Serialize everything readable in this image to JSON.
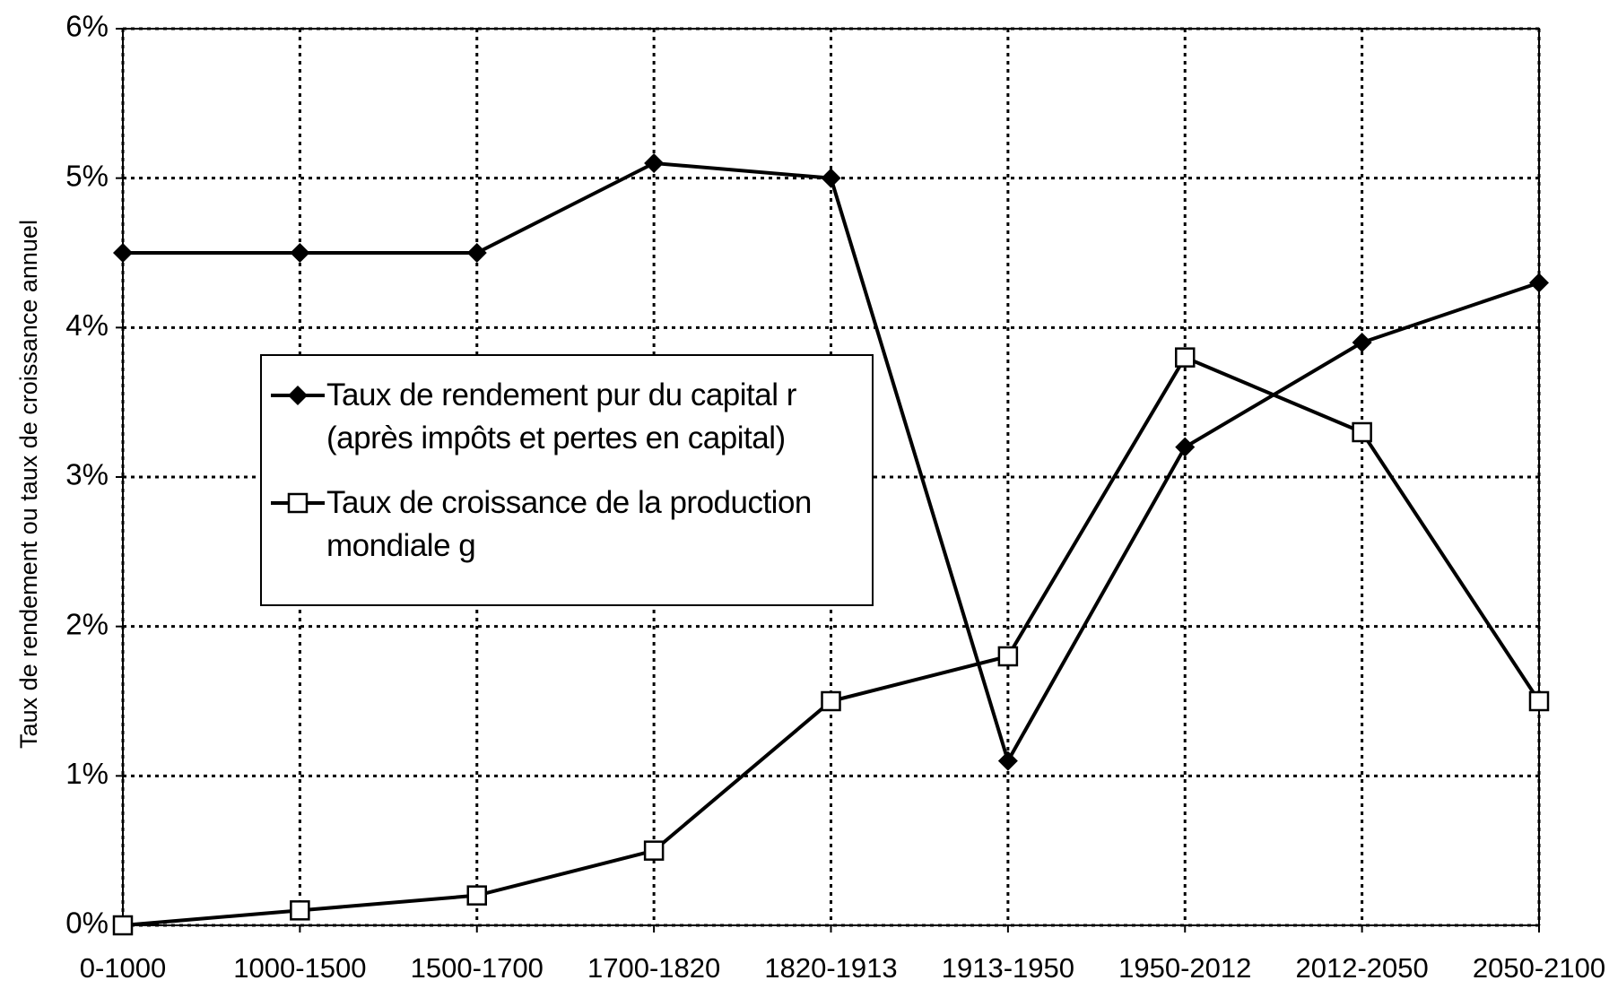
{
  "chart_data": {
    "type": "line",
    "y_label": "Taux de rendement ou taux de croissance annuel",
    "categories": [
      "0-1000",
      "1000-1500",
      "1500-1700",
      "1700-1820",
      "1820-1913",
      "1913-1950",
      "1950-2012",
      "2012-2050",
      "2050-2100"
    ],
    "series": [
      {
        "name": "Taux de rendement pur du capital r (après impôts et pertes en capital)",
        "color": "#000000",
        "marker": "diamond",
        "values": [
          4.5,
          4.5,
          4.5,
          5.1,
          5.0,
          1.1,
          3.2,
          3.9,
          4.3
        ]
      },
      {
        "name": "Taux de croissance de la production mondiale g",
        "color": "#000000",
        "marker": "square",
        "values": [
          0.0,
          0.1,
          0.2,
          0.5,
          1.5,
          1.8,
          3.8,
          3.3,
          1.5
        ]
      }
    ],
    "ylim": [
      0,
      6
    ],
    "yticks": [
      {
        "value": 0,
        "label": "0%"
      },
      {
        "value": 1,
        "label": "1%"
      },
      {
        "value": 2,
        "label": "2%"
      },
      {
        "value": 3,
        "label": "3%"
      },
      {
        "value": 4,
        "label": "4%"
      },
      {
        "value": 5,
        "label": "5%"
      },
      {
        "value": 6,
        "label": "6%"
      }
    ],
    "grid": true
  }
}
